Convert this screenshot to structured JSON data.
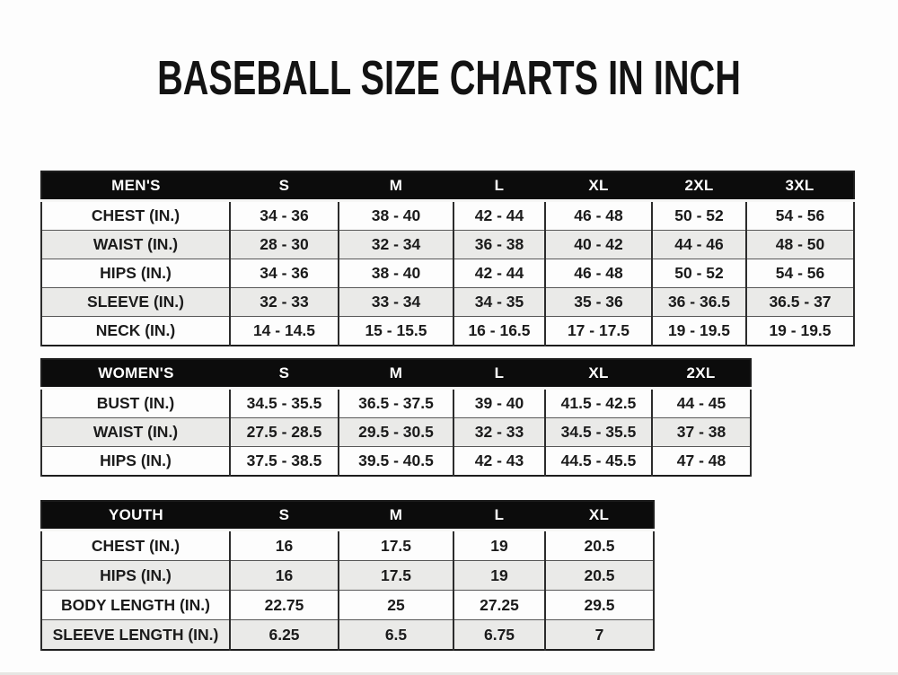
{
  "title": "BASEBALL SIZE CHARTS IN INCH",
  "colors": {
    "header_bg": "#0c0c0c",
    "header_text": "#ffffff",
    "row_plain": "#fdfdfd",
    "row_shaded": "#eaeae8",
    "grid_line": "#2c2c2c",
    "title_text": "#131313"
  },
  "chart_data": [
    {
      "type": "table",
      "name": "Men's size chart",
      "columns": [
        "MEN'S",
        "S",
        "M",
        "L",
        "XL",
        "2XL",
        "3XL"
      ],
      "rows": [
        [
          "CHEST (IN.)",
          "34 - 36",
          "38 - 40",
          "42 - 44",
          "46 - 48",
          "50 - 52",
          "54 - 56"
        ],
        [
          "WAIST (IN.)",
          "28 - 30",
          "32 - 34",
          "36 - 38",
          "40 - 42",
          "44 - 46",
          "48 - 50"
        ],
        [
          "HIPS (IN.)",
          "34 - 36",
          "38 - 40",
          "42 - 44",
          "46 - 48",
          "50 - 52",
          "54 - 56"
        ],
        [
          "SLEEVE (IN.)",
          "32 - 33",
          "33 - 34",
          "34 - 35",
          "35 - 36",
          "36 - 36.5",
          "36.5 - 37"
        ],
        [
          "NECK (IN.)",
          "14 - 14.5",
          "15 - 15.5",
          "16 - 16.5",
          "17 - 17.5",
          "19 - 19.5",
          "19 - 19.5"
        ]
      ]
    },
    {
      "type": "table",
      "name": "Women's size chart",
      "columns": [
        "WOMEN'S",
        "S",
        "M",
        "L",
        "XL",
        "2XL"
      ],
      "rows": [
        [
          "BUST (IN.)",
          "34.5 - 35.5",
          "36.5 - 37.5",
          "39 - 40",
          "41.5 - 42.5",
          "44 - 45"
        ],
        [
          "WAIST (IN.)",
          "27.5 - 28.5",
          "29.5 - 30.5",
          "32 - 33",
          "34.5 - 35.5",
          "37 - 38"
        ],
        [
          "HIPS (IN.)",
          "37.5 - 38.5",
          "39.5 - 40.5",
          "42 - 43",
          "44.5 - 45.5",
          "47 - 48"
        ]
      ]
    },
    {
      "type": "table",
      "name": "Youth size chart",
      "columns": [
        "YOUTH",
        "S",
        "M",
        "L",
        "XL"
      ],
      "rows": [
        [
          "CHEST (IN.)",
          "16",
          "17.5",
          "19",
          "20.5"
        ],
        [
          "HIPS (IN.)",
          "16",
          "17.5",
          "19",
          "20.5"
        ],
        [
          "BODY LENGTH (IN.)",
          "22.75",
          "25",
          "27.25",
          "29.5"
        ],
        [
          "SLEEVE LENGTH (IN.)",
          "6.25",
          "6.5",
          "6.75",
          "7"
        ]
      ]
    }
  ]
}
